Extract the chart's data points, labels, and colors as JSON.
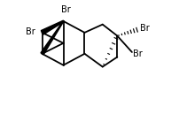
{
  "background": "#ffffff",
  "line_color": "#000000",
  "line_width": 1.3,
  "text_color": "#000000",
  "font_size": 7.0,
  "figsize": [
    2.02,
    1.29
  ],
  "dpi": 100,
  "xlim": [
    0.0,
    10.0
  ],
  "ylim": [
    1.5,
    8.5
  ]
}
